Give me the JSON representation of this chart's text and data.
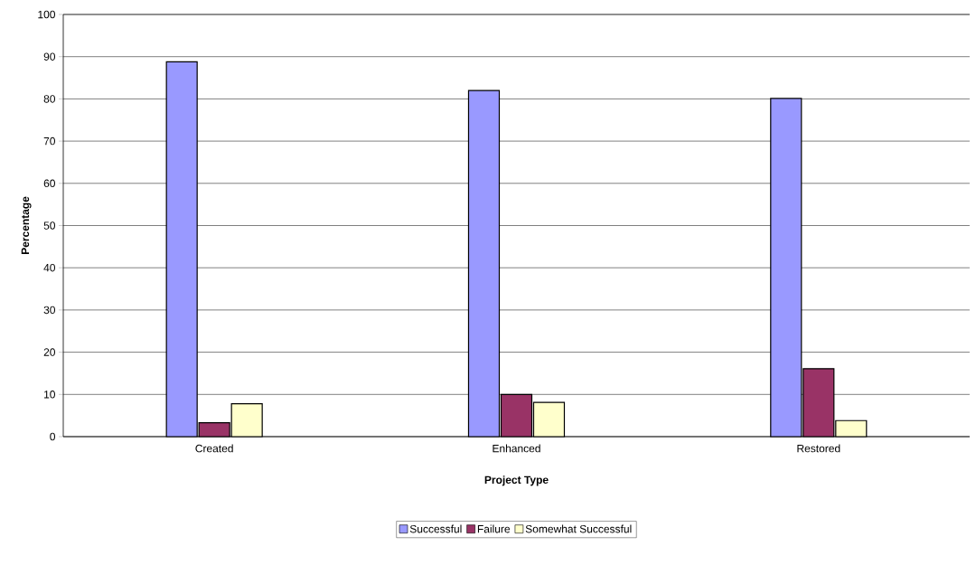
{
  "chart_data": {
    "type": "bar",
    "xlabel": "Project Type",
    "ylabel": "Percentage",
    "categories": [
      "Created",
      "Enhanced",
      "Restored"
    ],
    "series": [
      {
        "name": "Successful",
        "color": "#9999ff",
        "values": [
          88.8,
          82,
          80.1
        ]
      },
      {
        "name": "Failure",
        "color": "#993366",
        "values": [
          3.3,
          10,
          16.1
        ]
      },
      {
        "name": "Somewhat Successful",
        "color": "#ffffcc",
        "values": [
          7.8,
          8.1,
          3.8
        ]
      }
    ],
    "ylim": [
      0,
      100
    ],
    "yticks": [
      0,
      10,
      20,
      30,
      40,
      50,
      60,
      70,
      80,
      90,
      100
    ],
    "grid": "y",
    "legend": "bottom"
  }
}
